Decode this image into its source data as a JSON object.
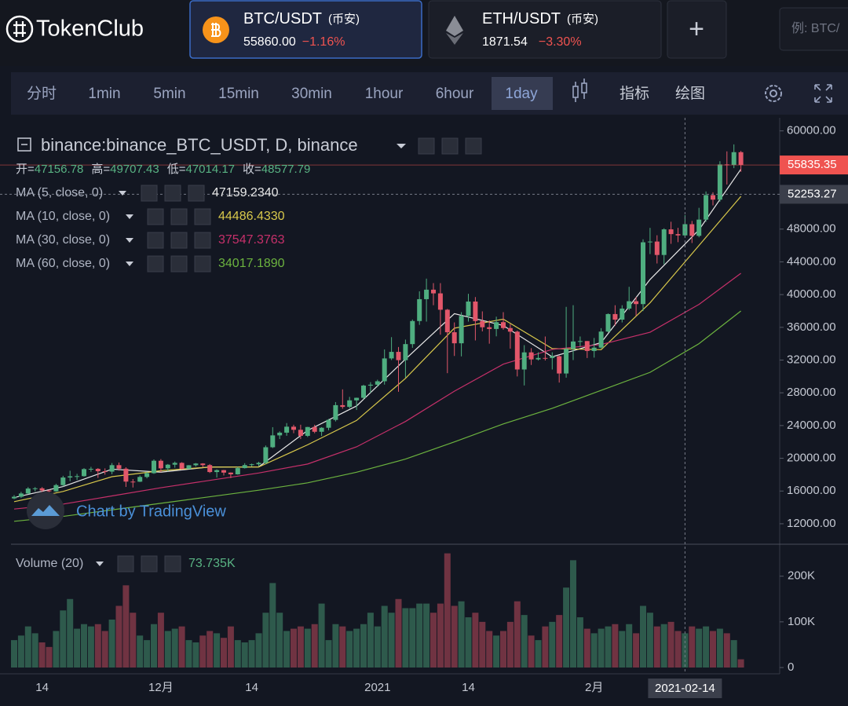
{
  "header": {
    "logo": "TokenClub",
    "tabs": [
      {
        "pair": "BTC/USDT",
        "exchange": "(币安)",
        "price": "55860.00",
        "change": "−1.16%"
      },
      {
        "pair": "ETH/USDT",
        "exchange": "(币安)",
        "price": "1871.54",
        "change": "−3.30%"
      }
    ],
    "add": "+",
    "search_placeholder": "例: BTC/"
  },
  "toolbar": {
    "intervals": [
      "分时",
      "1min",
      "5min",
      "15min",
      "30min",
      "1hour",
      "6hour",
      "1day"
    ],
    "tools": [
      "指标",
      "绘图"
    ]
  },
  "chart_data": {
    "type": "candlestick",
    "title": "binance:binance_BTC_USDT, D, binance",
    "ohlc_legend": [
      {
        "label": "开=",
        "value": 47156.78
      },
      {
        "label": "高=",
        "value": 49707.43
      },
      {
        "label": "低=",
        "value": 47014.17
      },
      {
        "label": "收=",
        "value": 48577.79
      }
    ],
    "up_color": "#4fae80",
    "down_color": "#e2576a",
    "categories": [
      null,
      null,
      null,
      null,
      "14",
      null,
      null,
      null,
      null,
      null,
      null,
      null,
      null,
      null,
      null,
      null,
      null,
      null,
      null,
      null,
      null,
      "12月",
      null,
      null,
      null,
      null,
      null,
      null,
      null,
      null,
      null,
      null,
      null,
      null,
      "14",
      null,
      null,
      null,
      null,
      null,
      null,
      null,
      null,
      null,
      null,
      null,
      null,
      null,
      null,
      null,
      null,
      null,
      "2021",
      null,
      null,
      null,
      null,
      null,
      null,
      null,
      null,
      null,
      null,
      null,
      null,
      "14",
      null,
      null,
      null,
      null,
      null,
      null,
      null,
      null,
      null,
      null,
      null,
      null,
      null,
      null,
      null,
      null,
      null,
      "2月",
      null,
      null,
      null,
      null,
      null,
      null,
      null,
      null,
      null,
      null,
      null,
      null,
      null,
      null,
      null,
      null,
      null,
      null,
      null,
      null,
      null
    ],
    "open": [
      15100,
      15300,
      15700,
      16300,
      16330,
      16070,
      15960,
      16720,
      17650,
      17800,
      17820,
      18680,
      18710,
      18420,
      18370,
      19160,
      18730,
      17150,
      17140,
      17720,
      18180,
      19700,
      18770,
      19220,
      19440,
      18700,
      19150,
      19360,
      19170,
      18320,
      18550,
      18250,
      18040,
      18800,
      19170,
      19270,
      19440,
      21350,
      22800,
      23130,
      23860,
      23480,
      22740,
      23820,
      23240,
      23730,
      24690,
      26490,
      26280,
      27080,
      27390,
      28880,
      28990,
      29410,
      32200,
      33000,
      31990,
      33950,
      36770,
      39440,
      40600,
      40150,
      38150,
      35400,
      34050,
      37390,
      39150,
      36770,
      36010,
      35800,
      36630,
      35910,
      35470,
      30850,
      32940,
      32080,
      32260,
      32250,
      32470,
      30360,
      33360,
      34270,
      34320,
      33110,
      33520,
      35480,
      37620,
      36940,
      38290,
      39190,
      38840,
      46390,
      46480,
      44840,
      47970,
      47390,
      47230,
      48600,
      47180,
      49160,
      52150,
      51600,
      55900,
      55840,
      57400
    ],
    "high": [
      15500,
      15900,
      16480,
      16480,
      16480,
      16180,
      16880,
      17860,
      18480,
      18100,
      18800,
      18950,
      18800,
      18770,
      19420,
      19480,
      18900,
      17460,
      17900,
      18350,
      19860,
      19900,
      19300,
      19600,
      19520,
      19170,
      19420,
      19400,
      19300,
      18650,
      18580,
      18280,
      18950,
      19400,
      19350,
      19570,
      21560,
      23800,
      23290,
      24300,
      24100,
      24100,
      23840,
      24100,
      23800,
      24800,
      26870,
      28420,
      27500,
      27410,
      28990,
      29300,
      29600,
      33300,
      34800,
      33600,
      34500,
      36950,
      40400,
      41950,
      41400,
      41400,
      38250,
      36600,
      37850,
      40100,
      39700,
      37950,
      36850,
      37300,
      37850,
      36400,
      35600,
      33820,
      33450,
      32950,
      34880,
      32950,
      32550,
      38500,
      38700,
      34880,
      34330,
      34700,
      35900,
      37700,
      38700,
      38700,
      40950,
      39700,
      46750,
      48150,
      47250,
      48100,
      48900,
      48150,
      49700,
      49000,
      50600,
      52600,
      52500,
      56300,
      57500,
      58350,
      57550
    ],
    "low": [
      15000,
      15150,
      15600,
      15950,
      15750,
      15800,
      15900,
      16550,
      17200,
      17350,
      17750,
      18350,
      17600,
      18000,
      18050,
      18500,
      16500,
      16430,
      17100,
      17550,
      18100,
      18300,
      18400,
      18850,
      18600,
      18700,
      19000,
      18900,
      18200,
      17650,
      17900,
      17580,
      18000,
      18750,
      19000,
      19050,
      19280,
      21250,
      22350,
      22750,
      23060,
      22350,
      22600,
      23060,
      22720,
      23430,
      24500,
      26050,
      26100,
      25900,
      27200,
      28000,
      28700,
      29000,
      32000,
      28130,
      29850,
      33500,
      36300,
      36700,
      38700,
      35100,
      30400,
      32500,
      32450,
      36700,
      34400,
      35500,
      34000,
      34900,
      35700,
      33400,
      30000,
      28900,
      31400,
      31950,
      31950,
      30850,
      29250,
      29850,
      32000,
      33650,
      32250,
      32300,
      33420,
      35400,
      36200,
      36600,
      38100,
      37400,
      37980,
      44950,
      43800,
      43700,
      46200,
      46400,
      47000,
      46300,
      47000,
      48900,
      50900,
      51350,
      53450,
      55450,
      55000
    ],
    "close": [
      15300,
      15700,
      16300,
      16330,
      16070,
      15960,
      16720,
      17650,
      17800,
      17820,
      18680,
      18710,
      18420,
      18370,
      19160,
      18730,
      17150,
      17140,
      17720,
      18180,
      19700,
      18770,
      19220,
      19440,
      18700,
      19150,
      19360,
      19170,
      18320,
      18550,
      18250,
      18040,
      18800,
      19170,
      19270,
      19440,
      21350,
      22800,
      23130,
      23860,
      23480,
      22740,
      23820,
      23240,
      23730,
      24690,
      26490,
      26280,
      27080,
      27390,
      28880,
      28990,
      29410,
      32200,
      33000,
      31990,
      33950,
      36770,
      39440,
      40600,
      40150,
      38150,
      35400,
      34050,
      37390,
      39150,
      36770,
      36010,
      35800,
      36630,
      35910,
      35470,
      30850,
      32940,
      32080,
      32260,
      32250,
      32470,
      30360,
      33360,
      34270,
      34320,
      33110,
      33520,
      35480,
      37620,
      36940,
      38290,
      39190,
      38840,
      46390,
      46480,
      44840,
      47970,
      47390,
      47230,
      48600,
      47180,
      49160,
      52150,
      51600,
      55900,
      55840,
      57400,
      55835
    ],
    "ylim": [
      9500,
      61600
    ],
    "yticks": [
      {
        "value": 12000,
        "label": "12000.00"
      },
      {
        "value": 16000,
        "label": "16000.00"
      },
      {
        "value": 20000,
        "label": "20000.00"
      },
      {
        "value": 24000,
        "label": "24000.00"
      },
      {
        "value": 28000,
        "label": "28000.00"
      },
      {
        "value": 32000,
        "label": "32000.00"
      },
      {
        "value": 36000,
        "label": "36000.00"
      },
      {
        "value": 40000,
        "label": "40000.00"
      },
      {
        "value": 44000,
        "label": "44000.00"
      },
      {
        "value": 48000,
        "label": "48000.00"
      },
      {
        "value": 52000,
        "label": "52000.00"
      },
      {
        "value": 56000,
        "label": "56000.00"
      },
      {
        "value": 60000,
        "label": "60000.00"
      }
    ],
    "grid": false,
    "ma": [
      {
        "name": "MA (5, close, 0)",
        "color": "#e8e8e8",
        "legend_value": "47159.2340",
        "x": [
          0,
          7,
          14,
          21,
          28,
          35,
          42,
          49,
          56,
          63,
          70,
          77,
          84,
          91,
          98,
          104
        ],
        "values": [
          15200,
          16550,
          18670,
          18300,
          18940,
          18950,
          23400,
          26390,
          32110,
          37670,
          36220,
          32400,
          34140,
          41840,
          47910,
          55320
        ]
      },
      {
        "name": "MA (10, close, 0)",
        "color": "#d8c84b",
        "legend_value": "44486.4330",
        "x": [
          0,
          7,
          14,
          21,
          28,
          35,
          42,
          49,
          56,
          63,
          70,
          77,
          84,
          91,
          98,
          104
        ],
        "values": [
          14700,
          15950,
          17750,
          18480,
          18930,
          18940,
          21650,
          24620,
          29760,
          35900,
          37000,
          33400,
          33270,
          39000,
          46000,
          52000
        ]
      },
      {
        "name": "MA (30, close, 0)",
        "color": "#c6306a",
        "legend_value": "37547.3763",
        "x": [
          0,
          7,
          14,
          21,
          28,
          35,
          42,
          49,
          56,
          63,
          70,
          77,
          84,
          91,
          98,
          104
        ],
        "values": [
          13800,
          14400,
          15400,
          16400,
          17300,
          18200,
          19300,
          21400,
          24500,
          28200,
          31500,
          33300,
          33900,
          35400,
          38800,
          42600
        ]
      },
      {
        "name": "MA (60, close, 0)",
        "color": "#6cb33f",
        "legend_value": "34017.1890",
        "x": [
          0,
          7,
          14,
          21,
          28,
          35,
          42,
          49,
          56,
          63,
          70,
          77,
          84,
          91,
          98,
          104
        ],
        "values": [
          12300,
          12900,
          13700,
          14500,
          15300,
          16100,
          17000,
          18300,
          19900,
          22000,
          24200,
          26100,
          28300,
          30500,
          34000,
          38000
        ]
      }
    ],
    "volume": {
      "legend": "Volume (20)",
      "legend_value": "73.735K",
      "ylim": [
        0,
        270000
      ],
      "yticks": [
        0,
        {
          "value": 100000,
          "label": "100K"
        },
        {
          "value": 200000,
          "label": "200K"
        }
      ],
      "values": [
        60000,
        70000,
        90000,
        75000,
        55000,
        45000,
        80000,
        125000,
        150000,
        85000,
        95000,
        90000,
        95000,
        80000,
        105000,
        135000,
        180000,
        120000,
        70000,
        60000,
        95000,
        120000,
        80000,
        85000,
        90000,
        60000,
        55000,
        70000,
        80000,
        75000,
        65000,
        90000,
        60000,
        55000,
        60000,
        75000,
        120000,
        185000,
        120000,
        80000,
        85000,
        90000,
        85000,
        95000,
        140000,
        60000,
        95000,
        90000,
        80000,
        85000,
        95000,
        120000,
        90000,
        135000,
        120000,
        150000,
        130000,
        130000,
        140000,
        140000,
        120000,
        140000,
        250000,
        135000,
        145000,
        110000,
        120000,
        100000,
        80000,
        70000,
        80000,
        100000,
        145000,
        115000,
        70000,
        60000,
        90000,
        100000,
        115000,
        175000,
        235000,
        110000,
        85000,
        75000,
        85000,
        90000,
        95000,
        80000,
        95000,
        75000,
        135000,
        120000,
        90000,
        95000,
        100000,
        80000,
        75000,
        90000,
        85000,
        90000,
        80000,
        85000,
        75000,
        60000,
        18000
      ]
    },
    "last_price": {
      "value": 55835.35,
      "color": "#ef5350"
    },
    "crosshair": {
      "index": 96,
      "price": 52253.27,
      "date_label": "2021-02-14"
    },
    "watermark": "Chart by TradingView"
  }
}
